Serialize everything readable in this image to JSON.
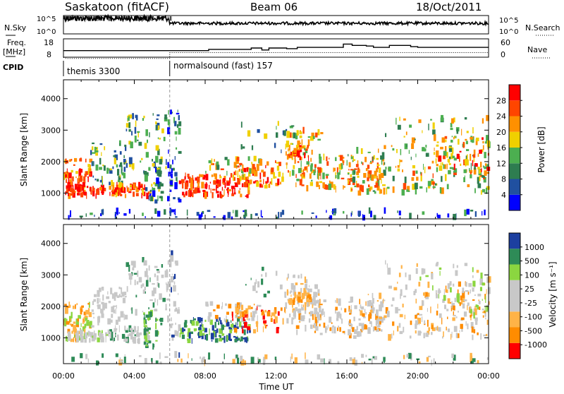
{
  "header": {
    "station": "Saskatoon (fitACF)",
    "beam": "Beam 06",
    "date": "18/Oct/2011"
  },
  "strip_nsky": {
    "left_label": "N.Sky",
    "right_label": "N.Search",
    "left_ticks": [
      "10^5",
      "10^0"
    ],
    "right_ticks": [
      "10^5",
      "10^0"
    ]
  },
  "strip_freq": {
    "left_label_1": "Freq.",
    "left_label_2": "[MHz]",
    "right_label": "Nave",
    "left_ticks": [
      "18",
      "8"
    ],
    "right_ticks": [
      "60",
      "0"
    ]
  },
  "cpid": {
    "label": "CPID",
    "segments": [
      {
        "name": "themis 3300",
        "start_hour": 0
      },
      {
        "name": "normalsound (fast) 157",
        "start_hour": 6
      }
    ]
  },
  "colors": {
    "power": [
      "#0000ff",
      "#2050a0",
      "#2e7d50",
      "#4caf50",
      "#f0d000",
      "#ff9000",
      "#ff4500",
      "#ff0000"
    ],
    "velocity": [
      "#ff0000",
      "#ff8c00",
      "#ffb347",
      "#c8c8c8",
      "#c8c8c8",
      "#8bd640",
      "#2e8b57",
      "#1c3fa0"
    ]
  },
  "chart_data": [
    {
      "type": "heatmap",
      "title": "",
      "xlabel": "",
      "ylabel": "Slant Range [km]",
      "x_ticks": [
        "00:00",
        "04:00",
        "08:00",
        "12:00",
        "16:00",
        "20:00",
        "00:00"
      ],
      "y_ticks": [
        1000,
        2000,
        3000,
        4000
      ],
      "xlim": [
        0,
        24
      ],
      "ylim": [
        180,
        4600
      ],
      "colorbar": {
        "label": "Power [dB]",
        "ticks": [
          4,
          8,
          12,
          16,
          20,
          24,
          28
        ],
        "range": [
          0,
          32
        ]
      }
    },
    {
      "type": "heatmap",
      "title": "",
      "xlabel": "Time UT",
      "ylabel": "Slant Range [km]",
      "x_ticks": [
        "00:00",
        "04:00",
        "08:00",
        "12:00",
        "16:00",
        "20:00",
        "00:00"
      ],
      "y_ticks": [
        1000,
        2000,
        3000,
        4000
      ],
      "xlim": [
        0,
        24
      ],
      "ylim": [
        180,
        4600
      ],
      "colorbar": {
        "label": "Velocity [m s⁻¹]",
        "ticks": [
          "1000",
          "500",
          "100",
          "25",
          "-25",
          "-100",
          "-500",
          "-1000"
        ]
      }
    }
  ]
}
